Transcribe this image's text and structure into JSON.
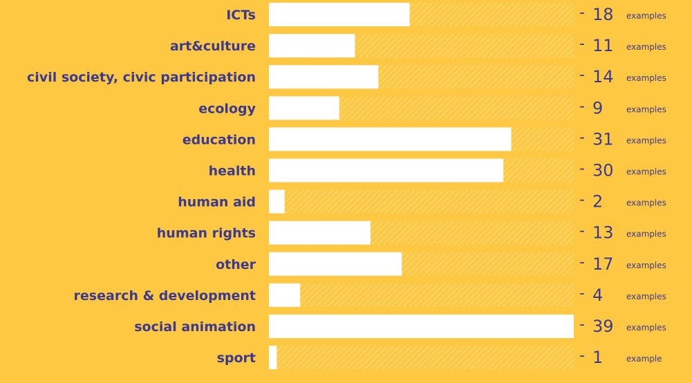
{
  "chart_data": {
    "type": "bar",
    "orientation": "horizontal",
    "categories": [
      "ICTs",
      "art&culture",
      "civil society, civic participation",
      "ecology",
      "education",
      "health",
      "human aid",
      "human rights",
      "other",
      "research & development",
      "social animation",
      "sport"
    ],
    "values": [
      18,
      11,
      14,
      9,
      31,
      30,
      2,
      13,
      17,
      4,
      39,
      1
    ],
    "value_labels": [
      "18",
      "11",
      "14",
      "9",
      "31",
      "30",
      "2",
      "13",
      "17",
      "4",
      "39",
      "1"
    ],
    "unit_labels": [
      "examples",
      "examples",
      "examples",
      "examples",
      "examples",
      "examples",
      "examples",
      "examples",
      "examples",
      "examples",
      "examples",
      "example"
    ],
    "separator": "-",
    "xlim": [
      0,
      39
    ],
    "grid": false,
    "colors": {
      "background": "#FEC843",
      "bar": "#FFFFFF",
      "track_stripe": "#FFE08A",
      "text": "#3B3A8E"
    }
  }
}
